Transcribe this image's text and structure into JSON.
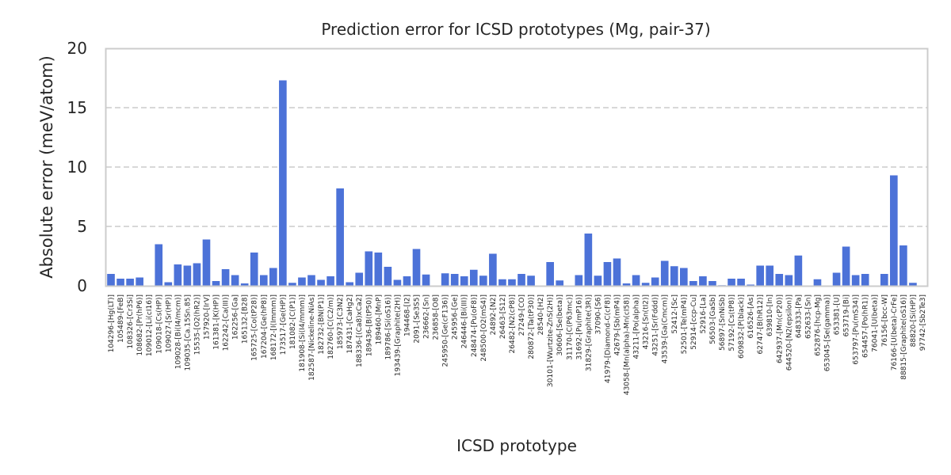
{
  "chart_data": {
    "type": "bar",
    "title": "Prediction error for ICSD prototypes (Mg, pair-37)",
    "xlabel": "ICSD prototype",
    "ylabel": "Absolute error (meV/atom)",
    "ylim": [
      0,
      20
    ],
    "yticks": [
      0,
      5,
      10,
      15,
      20
    ],
    "grid": "horizontal dashed",
    "bar_color": "#4C72D8",
    "categories": [
      "104296-[Hg(LT)]",
      "105489-[FeB]",
      "108326-[Cr3Si]",
      "108682-[Pr(hP6)]",
      "109012-[Li(cI16)]",
      "109018-[Cs(HP)]",
      "109027-[Sr(HP)]",
      "109028-[Bi(I4/mcm)]",
      "109035-[Ca.15Sn.85]",
      "15535-[O2(hR2)]",
      "157920-[IrV]",
      "161381-[K(HP)]",
      "162242-[Ca(III)]",
      "162256-[Ga]",
      "165132-[B28]",
      "165725-[Co(tP28)]",
      "167204-[Ge(hP8)]",
      "168172-[I(Immm)]",
      "173517-[Ge(HP)]",
      "181082-[C(P1)]",
      "181908-[Si(I4/mmm)]",
      "182587-[Nickeline-NiAs]",
      "182732-[BN(P1)]",
      "182760-[C(C2/m)]",
      "185973-[C3N2]",
      "187431-[CaHg2]",
      "188336-[(Ca8)xCa2]",
      "189436-[B(tP50)]",
      "189460-[MnP]",
      "189786-[Si(oS16)]",
      "193439-[Graphite(2H)]",
      "194468-[I2]",
      "2091-[Se3S5]",
      "236662-[Sn]",
      "236858-[O8]",
      "245950-[Ge(cF136)]",
      "245956-[Ge]",
      "246446-[Bi(III)]",
      "248474-[Pu(oF8)]",
      "248500-[O2(mS4)]",
      "24892-[N2]",
      "26463-[S12]",
      "26482-[N2(cP8)]",
      "27249-[CO]",
      "280872-[Ta(tP30)]",
      "28540-[H2]",
      "30101-[Wurtzite-ZnS(2H)]",
      "30606-[Se(beta)]",
      "31170-[C(P63mc)]",
      "31692-[Pu(mP16)]",
      "31829-[Graphite(3R)]",
      "37090-[S6]",
      "41979-[Diamond-C(cF8)]",
      "42679-[Sb(mP4)]",
      "43058-[Mn(alpha)-Mn(cI58)]",
      "43211-[Po(alpha)]",
      "43216-[Sn(tI2)]",
      "43251-[Sr(Fddd)]",
      "43539-[Ga(Cmcm)]",
      "52412-[Sc]",
      "52501-[Te(mP4)]",
      "52914-[ccp-Cu]",
      "52916-[La]",
      "56503-[GaSb]",
      "56897-[SnNiSb]",
      "57192-[Cs(tP8)]",
      "609832-[P(black)]",
      "616526-[As]",
      "62747-[B(hR12)]",
      "639810-[In]",
      "642937-[Mn(cP20)]",
      "644520-[N2(epsilon)]",
      "648333-[Pa]",
      "652633-[Sn]",
      "652876-[hcp-Mg]",
      "653045-[Se(gamma)]",
      "653381-[U]",
      "653719-[Bi]",
      "653797-[Pu(mS34)]",
      "654457-[Po(hR1)]",
      "76041-[U(beta)]",
      "76156-[bcc-W]",
      "76166-[U(beta)-CrFe]",
      "88815-[Graphite(oS16)]",
      "88820-[Si(HP)]",
      "97742-[Sb2Te3]"
    ],
    "values": [
      1.0,
      0.6,
      0.6,
      0.7,
      0.0,
      3.5,
      0.3,
      1.8,
      1.7,
      1.9,
      3.9,
      0.4,
      1.4,
      0.9,
      0.2,
      2.8,
      0.9,
      1.5,
      17.3,
      0.25,
      0.7,
      0.9,
      0.5,
      0.8,
      8.2,
      0.3,
      1.1,
      2.9,
      2.8,
      1.6,
      0.5,
      0.8,
      3.1,
      0.95,
      0.0,
      1.05,
      1.0,
      0.8,
      1.35,
      0.85,
      2.7,
      0.55,
      0.55,
      1.0,
      0.85,
      0.0,
      2.0,
      0.45,
      0.0,
      0.9,
      4.4,
      0.85,
      2.0,
      2.3,
      0.2,
      0.9,
      0.25,
      0.7,
      2.1,
      1.65,
      1.5,
      0.4,
      0.8,
      0.4,
      0.05,
      0.6,
      0.6,
      0.1,
      1.7,
      1.7,
      1.0,
      0.9,
      2.55,
      0.0,
      0.55,
      0.0,
      1.1,
      3.3,
      0.9,
      1.0,
      0.0,
      1.0,
      9.3,
      3.4,
      0.25,
      0.0
    ]
  }
}
